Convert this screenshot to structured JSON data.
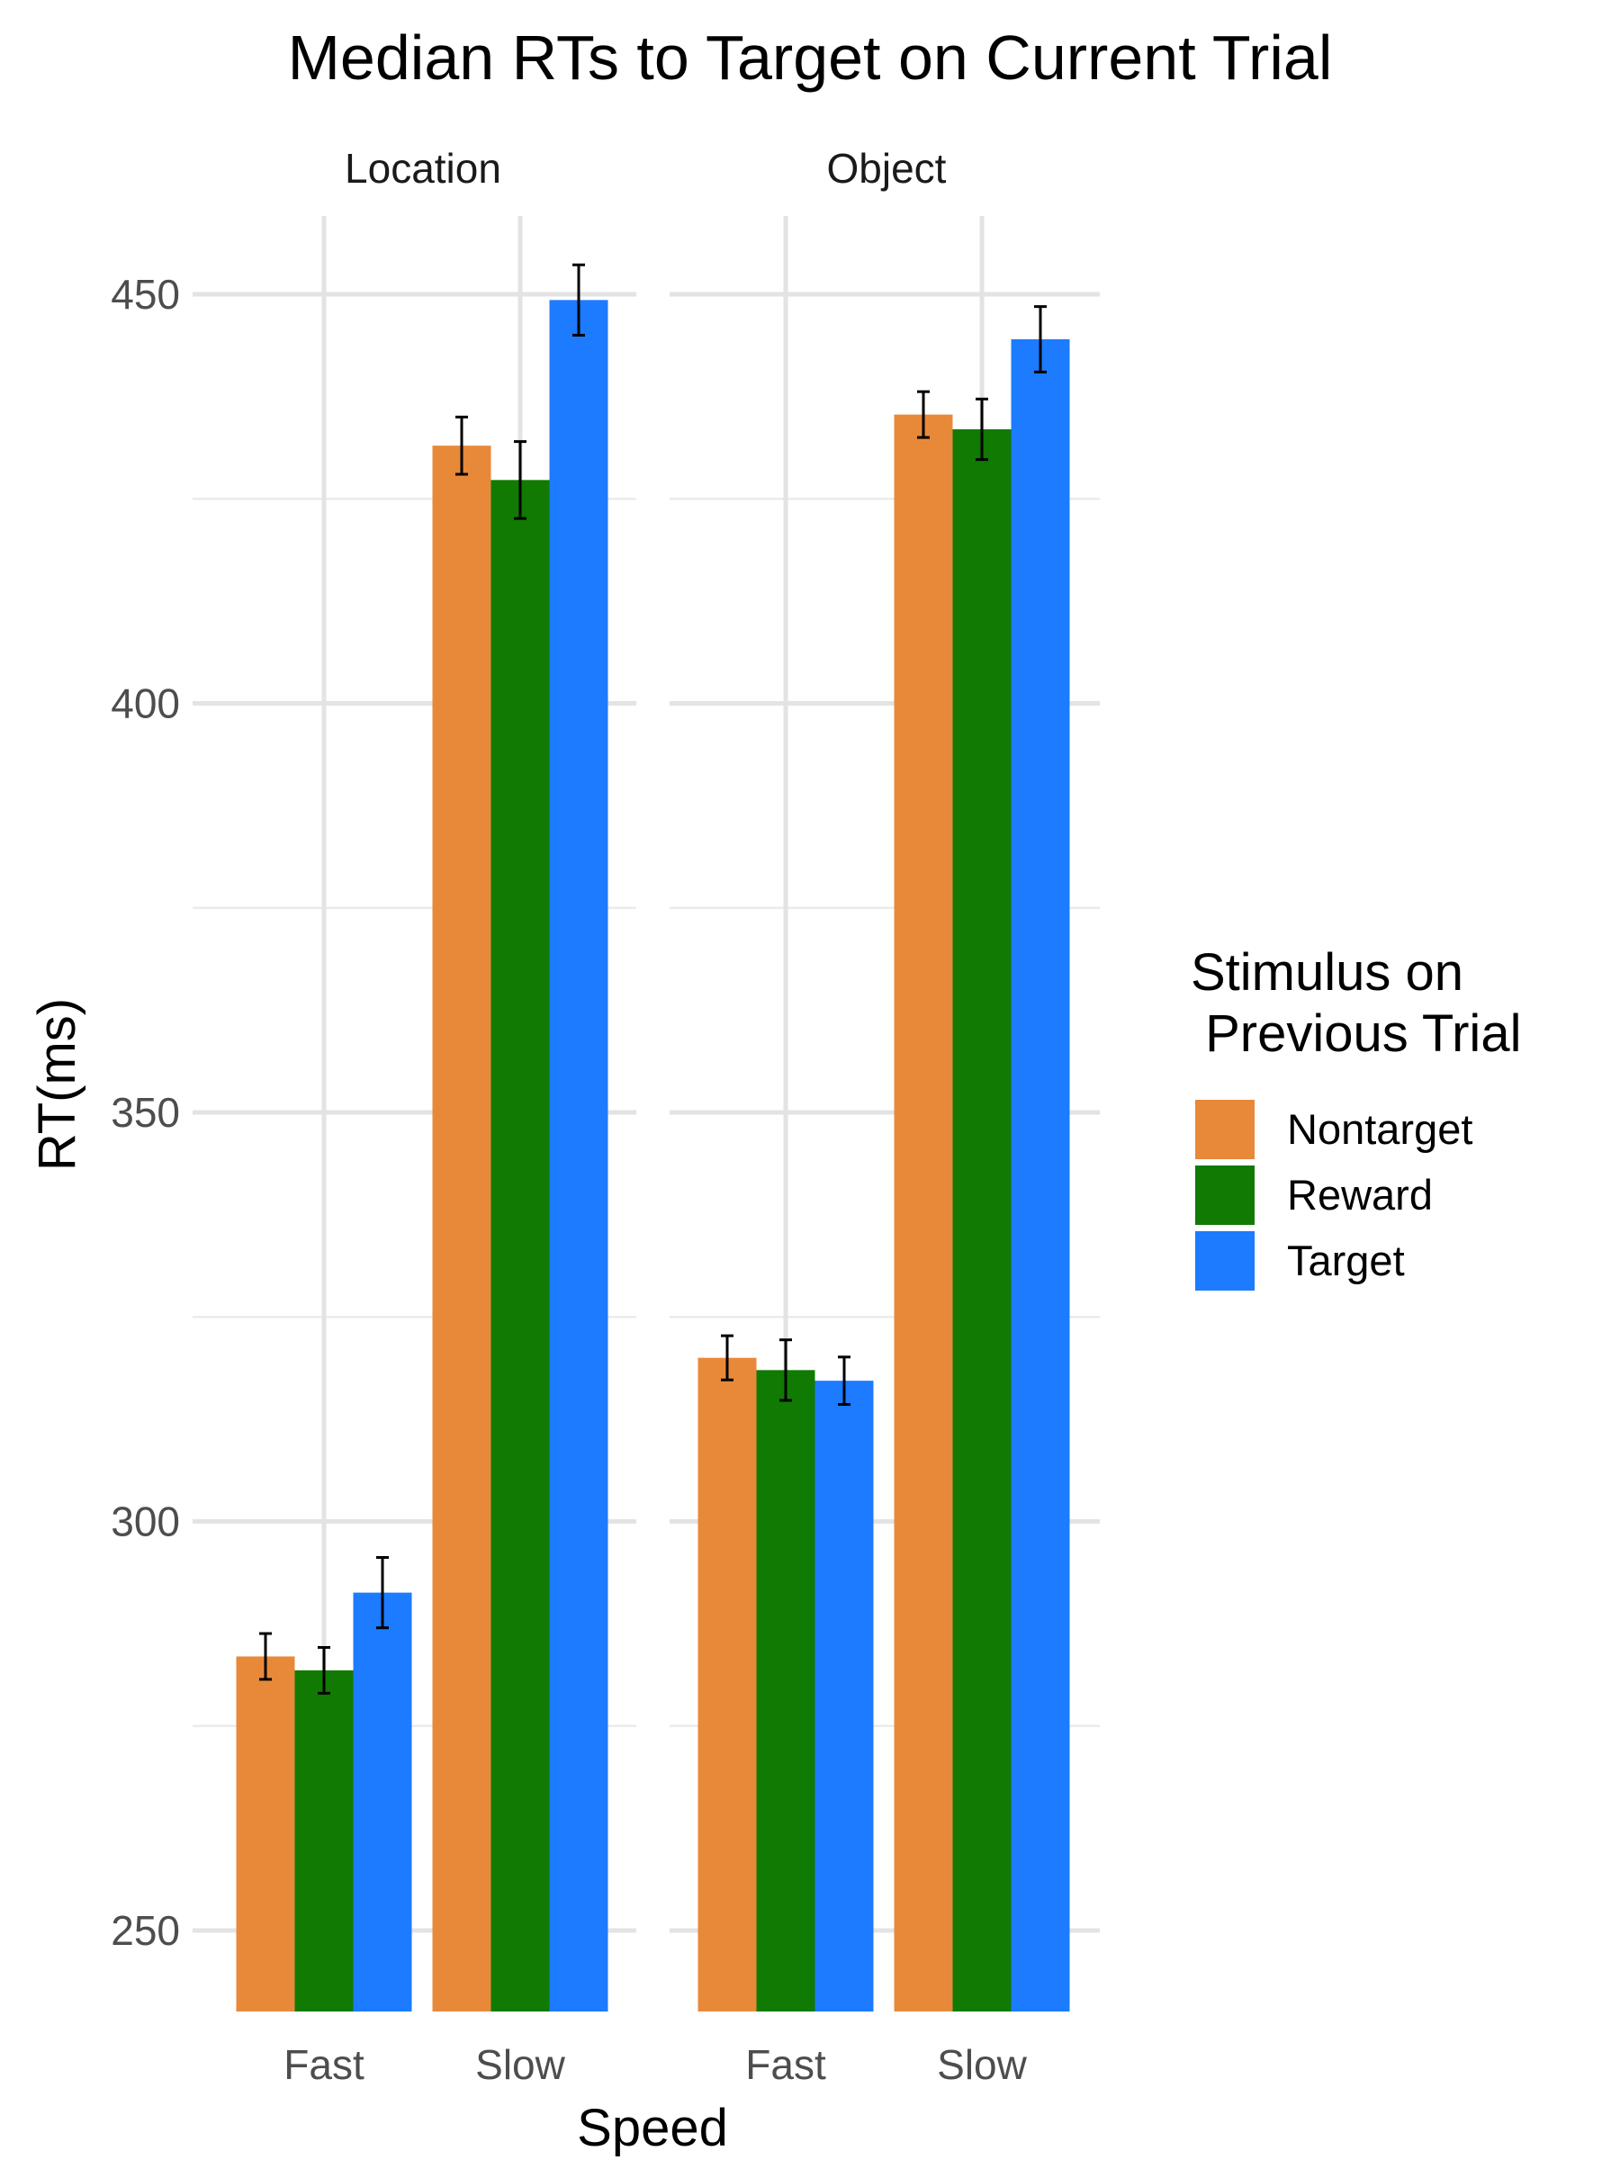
{
  "chart_data": {
    "type": "bar",
    "title": "Median RTs to Target on Current Trial",
    "xlabel": "Speed",
    "ylabel": "RT(ms)",
    "ylim": [
      240,
      458
    ],
    "yticks": [
      250,
      300,
      350,
      400,
      450
    ],
    "grid": true,
    "legend": {
      "title_lines": [
        "Stimulus on",
        " Previous Trial"
      ],
      "position": "right",
      "entries": [
        "Nontarget",
        "Reward",
        "Target"
      ]
    },
    "colors": {
      "Nontarget": "#E8893A",
      "Reward": "#107A02",
      "Target": "#1C7BFF"
    },
    "categories": [
      "Fast",
      "Slow"
    ],
    "facets": [
      {
        "name": "Location",
        "series": [
          {
            "name": "Nontarget",
            "values": [
              283.5,
              431.5
            ],
            "errors": [
              2.8,
              3.5
            ]
          },
          {
            "name": "Reward",
            "values": [
              281.8,
              427.3
            ],
            "errors": [
              2.8,
              4.7
            ]
          },
          {
            "name": "Target",
            "values": [
              291.3,
              449.3
            ],
            "errors": [
              4.3,
              4.3
            ]
          }
        ]
      },
      {
        "name": "Object",
        "series": [
          {
            "name": "Nontarget",
            "values": [
              320.0,
              435.3
            ],
            "errors": [
              2.7,
              2.8
            ]
          },
          {
            "name": "Reward",
            "values": [
              318.5,
              433.5
            ],
            "errors": [
              3.7,
              3.7
            ]
          },
          {
            "name": "Target",
            "values": [
              317.2,
              444.5
            ],
            "errors": [
              2.9,
              4.0
            ]
          }
        ]
      }
    ]
  }
}
